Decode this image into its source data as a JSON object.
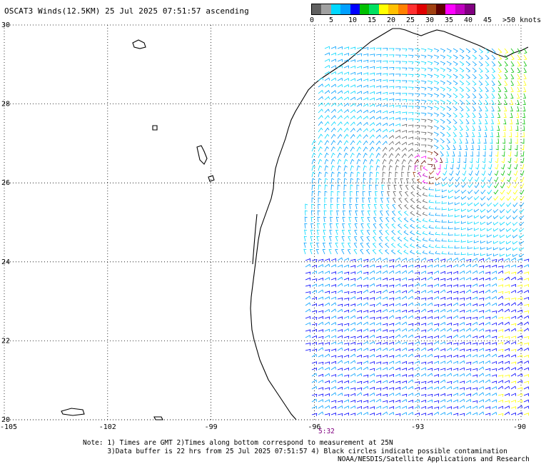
{
  "title": "OSCAT3 Winds(12.5KM) 25 Jul 2025 07:51:57 ascending",
  "legend": {
    "colors": [
      "#606060",
      "#a0a0a0",
      "#00d8ff",
      "#00a0ff",
      "#0000ff",
      "#00c000",
      "#00e060",
      "#ffff00",
      "#ffc000",
      "#ff8000",
      "#ff3030",
      "#e00000",
      "#a04010",
      "#600000",
      "#ff00ff",
      "#c000c0",
      "#800080"
    ],
    "labels": [
      "0",
      "5",
      "10",
      "15",
      "20",
      "25",
      "30",
      "35",
      "40",
      "45",
      ">50 knots"
    ]
  },
  "axes": {
    "lat_labels": [
      "30",
      "28",
      "26",
      "24",
      "22",
      "20"
    ],
    "lon_labels": [
      "-105",
      "-102",
      "-99",
      "-96",
      "-93",
      "-90"
    ],
    "lat_range": [
      20,
      30
    ],
    "lon_range": [
      -105,
      -90
    ],
    "grid": "dotted"
  },
  "time_label": "5:32",
  "notes": [
    "Note: 1) Times are GMT 2)Times along bottom correspond to measurement at 25N",
    "      3)Data buffer is 22 hrs from 25 Jul 2025 07:51:57 4) Black circles indicate possible contamination"
  ],
  "credit": "NOAA/NESDIS/Satellite Applications and Research"
}
